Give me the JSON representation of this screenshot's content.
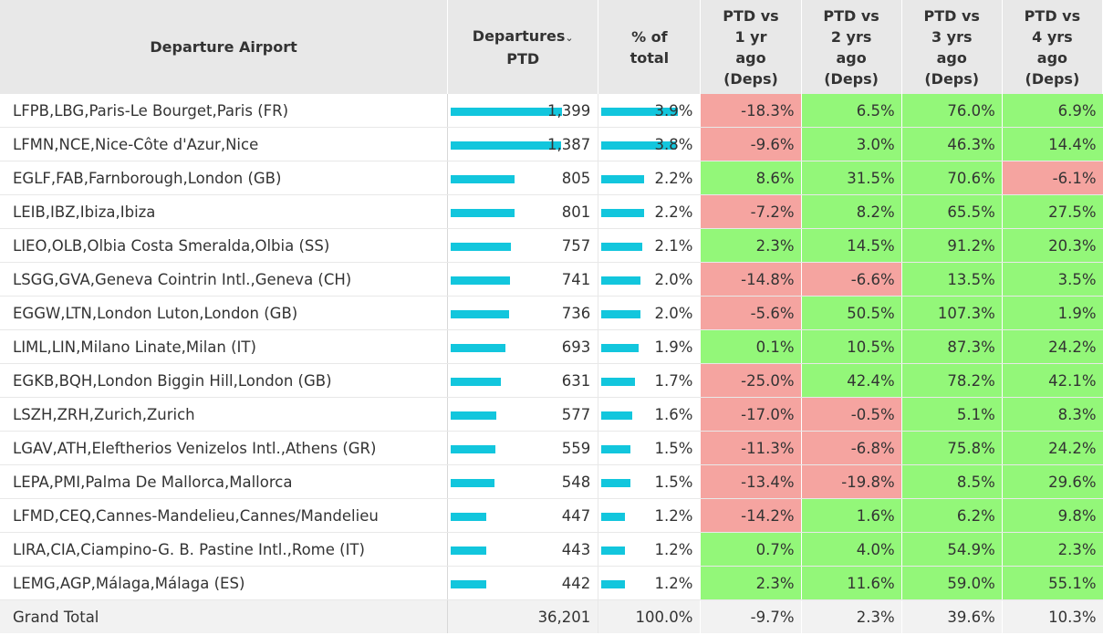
{
  "headers": {
    "airport": "Departure Airport",
    "deps_line1": "Departures",
    "deps_line2": "PTD",
    "pct_line1": "% of",
    "pct_line2": "total",
    "v1": [
      "PTD vs",
      "1 yr",
      "ago",
      "(Deps)"
    ],
    "v2": [
      "PTD vs",
      "2 yrs",
      "ago",
      "(Deps)"
    ],
    "v3": [
      "PTD vs",
      "3 yrs",
      "ago",
      "(Deps)"
    ],
    "v4": [
      "PTD vs",
      "4 yrs",
      "ago",
      "(Deps)"
    ]
  },
  "sort_icon": "chevron-down-icon",
  "colors": {
    "bar": "#12c6dd",
    "positive": "#93f779",
    "negative": "#f5a4a0",
    "header": "#e8e8e8"
  },
  "rows": [
    {
      "airport": "LFPB,LBG,Paris-Le Bourget,Paris (FR)",
      "deps": "1,399",
      "pct": "3.9%",
      "v1": "-18.3%",
      "v2": "6.5%",
      "v3": "76.0%",
      "v4": "6.9%"
    },
    {
      "airport": "LFMN,NCE,Nice-Côte d'Azur,Nice",
      "deps": "1,387",
      "pct": "3.8%",
      "v1": "-9.6%",
      "v2": "3.0%",
      "v3": "46.3%",
      "v4": "14.4%"
    },
    {
      "airport": "EGLF,FAB,Farnborough,London (GB)",
      "deps": "805",
      "pct": "2.2%",
      "v1": "8.6%",
      "v2": "31.5%",
      "v3": "70.6%",
      "v4": "-6.1%"
    },
    {
      "airport": "LEIB,IBZ,Ibiza,Ibiza",
      "deps": "801",
      "pct": "2.2%",
      "v1": "-7.2%",
      "v2": "8.2%",
      "v3": "65.5%",
      "v4": "27.5%"
    },
    {
      "airport": "LIEO,OLB,Olbia Costa Smeralda,Olbia (SS)",
      "deps": "757",
      "pct": "2.1%",
      "v1": "2.3%",
      "v2": "14.5%",
      "v3": "91.2%",
      "v4": "20.3%"
    },
    {
      "airport": "LSGG,GVA,Geneva Cointrin Intl.,Geneva (CH)",
      "deps": "741",
      "pct": "2.0%",
      "v1": "-14.8%",
      "v2": "-6.6%",
      "v3": "13.5%",
      "v4": "3.5%"
    },
    {
      "airport": "EGGW,LTN,London Luton,London (GB)",
      "deps": "736",
      "pct": "2.0%",
      "v1": "-5.6%",
      "v2": "50.5%",
      "v3": "107.3%",
      "v4": "1.9%"
    },
    {
      "airport": "LIML,LIN,Milano Linate,Milan (IT)",
      "deps": "693",
      "pct": "1.9%",
      "v1": "0.1%",
      "v2": "10.5%",
      "v3": "87.3%",
      "v4": "24.2%"
    },
    {
      "airport": "EGKB,BQH,London Biggin Hill,London (GB)",
      "deps": "631",
      "pct": "1.7%",
      "v1": "-25.0%",
      "v2": "42.4%",
      "v3": "78.2%",
      "v4": "42.1%"
    },
    {
      "airport": "LSZH,ZRH,Zurich,Zurich",
      "deps": "577",
      "pct": "1.6%",
      "v1": "-17.0%",
      "v2": "-0.5%",
      "v3": "5.1%",
      "v4": "8.3%"
    },
    {
      "airport": "LGAV,ATH,Eleftherios Venizelos Intl.,Athens (GR)",
      "deps": "559",
      "pct": "1.5%",
      "v1": "-11.3%",
      "v2": "-6.8%",
      "v3": "75.8%",
      "v4": "24.2%"
    },
    {
      "airport": "LEPA,PMI,Palma De Mallorca,Mallorca",
      "deps": "548",
      "pct": "1.5%",
      "v1": "-13.4%",
      "v2": "-19.8%",
      "v3": "8.5%",
      "v4": "29.6%"
    },
    {
      "airport": "LFMD,CEQ,Cannes-Mandelieu,Cannes/Mandelieu",
      "deps": "447",
      "pct": "1.2%",
      "v1": "-14.2%",
      "v2": "1.6%",
      "v3": "6.2%",
      "v4": "9.8%"
    },
    {
      "airport": "LIRA,CIA,Ciampino-G. B. Pastine Intl.,Rome (IT)",
      "deps": "443",
      "pct": "1.2%",
      "v1": "0.7%",
      "v2": "4.0%",
      "v3": "54.9%",
      "v4": "2.3%"
    },
    {
      "airport": "LEMG,AGP,Málaga,Málaga (ES)",
      "deps": "442",
      "pct": "1.2%",
      "v1": "2.3%",
      "v2": "11.6%",
      "v3": "59.0%",
      "v4": "55.1%"
    }
  ],
  "total": {
    "label": "Grand Total",
    "deps": "36,201",
    "pct": "100.0%",
    "v1": "-9.7%",
    "v2": "2.3%",
    "v3": "39.6%",
    "v4": "10.3%"
  }
}
